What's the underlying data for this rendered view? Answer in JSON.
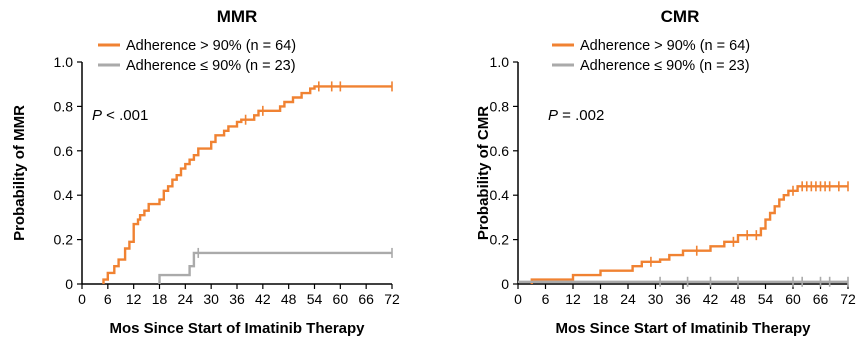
{
  "chart_data": [
    {
      "type": "line",
      "subtype": "kaplan-meier-cumulative-incidence",
      "title": "MMR",
      "xlabel": "Mos Since Start of Imatinib Therapy",
      "ylabel": "Probability of MMR",
      "xlim": [
        0,
        72
      ],
      "ylim": [
        0,
        1.0
      ],
      "xticks": [
        "0",
        "6",
        "12",
        "18",
        "24",
        "30",
        "36",
        "42",
        "48",
        "54",
        "60",
        "66",
        "72"
      ],
      "yticks": [
        "0",
        "0.2",
        "0.4",
        "0.6",
        "0.8",
        "1.0"
      ],
      "grid": false,
      "legend_position": "top-left",
      "p_value": {
        "prefix": "P",
        "text": " < .001"
      },
      "series": [
        {
          "name": "Adherence > 90% (n = 64)",
          "color": "#f08232",
          "points": [
            [
              5,
              0
            ],
            [
              5,
              0.02
            ],
            [
              6,
              0.02
            ],
            [
              6,
              0.05
            ],
            [
              7.5,
              0.05
            ],
            [
              7.5,
              0.08
            ],
            [
              8.5,
              0.08
            ],
            [
              8.5,
              0.11
            ],
            [
              10,
              0.11
            ],
            [
              10,
              0.16
            ],
            [
              11,
              0.16
            ],
            [
              11,
              0.19
            ],
            [
              12,
              0.19
            ],
            [
              12,
              0.27
            ],
            [
              13,
              0.27
            ],
            [
              13,
              0.29
            ],
            [
              13.5,
              0.29
            ],
            [
              13.5,
              0.31
            ],
            [
              14.5,
              0.31
            ],
            [
              14.5,
              0.33
            ],
            [
              15.5,
              0.33
            ],
            [
              15.5,
              0.36
            ],
            [
              18,
              0.36
            ],
            [
              18,
              0.38
            ],
            [
              19,
              0.38
            ],
            [
              19,
              0.42
            ],
            [
              20,
              0.42
            ],
            [
              20,
              0.44
            ],
            [
              21,
              0.44
            ],
            [
              21,
              0.47
            ],
            [
              22,
              0.47
            ],
            [
              22,
              0.49
            ],
            [
              23,
              0.49
            ],
            [
              23,
              0.52
            ],
            [
              24,
              0.52
            ],
            [
              24,
              0.54
            ],
            [
              25,
              0.54
            ],
            [
              25,
              0.56
            ],
            [
              26,
              0.56
            ],
            [
              26,
              0.58
            ],
            [
              27,
              0.58
            ],
            [
              27,
              0.61
            ],
            [
              30,
              0.61
            ],
            [
              30,
              0.64
            ],
            [
              31,
              0.64
            ],
            [
              31,
              0.67
            ],
            [
              33,
              0.67
            ],
            [
              33,
              0.69
            ],
            [
              34,
              0.69
            ],
            [
              34,
              0.71
            ],
            [
              36,
              0.71
            ],
            [
              36,
              0.73
            ],
            [
              37,
              0.73
            ],
            [
              37,
              0.74
            ],
            [
              40,
              0.74
            ],
            [
              40,
              0.76
            ],
            [
              41,
              0.76
            ],
            [
              41,
              0.78
            ],
            [
              46,
              0.78
            ],
            [
              46,
              0.8
            ],
            [
              47,
              0.8
            ],
            [
              47,
              0.82
            ],
            [
              49,
              0.82
            ],
            [
              49,
              0.84
            ],
            [
              51,
              0.84
            ],
            [
              51,
              0.86
            ],
            [
              53,
              0.86
            ],
            [
              53,
              0.88
            ],
            [
              54,
              0.88
            ],
            [
              54,
              0.89
            ],
            [
              72,
              0.89
            ]
          ],
          "censor": [
            [
              38,
              0.74
            ],
            [
              42,
              0.78
            ],
            [
              55,
              0.89
            ],
            [
              58,
              0.89
            ],
            [
              60,
              0.89
            ],
            [
              72,
              0.89
            ]
          ]
        },
        {
          "name": "Adherence ≤ 90% (n = 23)",
          "color": "#aaaaaa",
          "points": [
            [
              18,
              0
            ],
            [
              18,
              0.04
            ],
            [
              25,
              0.04
            ],
            [
              25,
              0.08
            ],
            [
              26,
              0.08
            ],
            [
              26,
              0.14
            ],
            [
              72,
              0.14
            ]
          ],
          "censor": [
            [
              27,
              0.14
            ],
            [
              72,
              0.14
            ]
          ]
        }
      ]
    },
    {
      "type": "line",
      "subtype": "kaplan-meier-cumulative-incidence",
      "title": "CMR",
      "xlabel": "Mos Since Start of Imatinib Therapy",
      "ylabel": "Probability of CMR",
      "xlim": [
        0,
        72
      ],
      "ylim": [
        0,
        1.0
      ],
      "xticks": [
        "0",
        "6",
        "12",
        "18",
        "24",
        "30",
        "36",
        "42",
        "48",
        "54",
        "60",
        "66",
        "72"
      ],
      "yticks": [
        "0",
        "0.2",
        "0.4",
        "0.6",
        "0.8",
        "1.0"
      ],
      "grid": false,
      "legend_position": "top-left",
      "p_value": {
        "prefix": "P",
        "text": " = .002"
      },
      "series": [
        {
          "name": "Adherence > 90% (n = 64)",
          "color": "#f08232",
          "points": [
            [
              3,
              0
            ],
            [
              3,
              0.02
            ],
            [
              12,
              0.02
            ],
            [
              12,
              0.04
            ],
            [
              18,
              0.04
            ],
            [
              18,
              0.06
            ],
            [
              25,
              0.06
            ],
            [
              25,
              0.08
            ],
            [
              27,
              0.08
            ],
            [
              27,
              0.1
            ],
            [
              31,
              0.1
            ],
            [
              31,
              0.11
            ],
            [
              33,
              0.11
            ],
            [
              33,
              0.13
            ],
            [
              36,
              0.13
            ],
            [
              36,
              0.15
            ],
            [
              42,
              0.15
            ],
            [
              42,
              0.17
            ],
            [
              45,
              0.17
            ],
            [
              45,
              0.19
            ],
            [
              48,
              0.19
            ],
            [
              48,
              0.22
            ],
            [
              53,
              0.22
            ],
            [
              53,
              0.25
            ],
            [
              54,
              0.25
            ],
            [
              54,
              0.29
            ],
            [
              55,
              0.29
            ],
            [
              55,
              0.32
            ],
            [
              56,
              0.32
            ],
            [
              56,
              0.35
            ],
            [
              57,
              0.35
            ],
            [
              57,
              0.38
            ],
            [
              58,
              0.38
            ],
            [
              58,
              0.4
            ],
            [
              59,
              0.4
            ],
            [
              59,
              0.42
            ],
            [
              61,
              0.42
            ],
            [
              61,
              0.44
            ],
            [
              72,
              0.44
            ]
          ],
          "censor": [
            [
              29,
              0.1
            ],
            [
              39,
              0.15
            ],
            [
              47,
              0.19
            ],
            [
              50,
              0.22
            ],
            [
              52,
              0.22
            ],
            [
              60,
              0.42
            ],
            [
              62,
              0.44
            ],
            [
              63,
              0.44
            ],
            [
              64,
              0.44
            ],
            [
              65,
              0.44
            ],
            [
              66,
              0.44
            ],
            [
              67,
              0.44
            ],
            [
              68,
              0.44
            ],
            [
              70,
              0.44
            ],
            [
              72,
              0.44
            ]
          ]
        },
        {
          "name": "Adherence ≤ 90% (n = 23)",
          "color": "#aaaaaa",
          "points": [
            [
              0,
              0.01
            ],
            [
              72,
              0.01
            ]
          ],
          "censor": [
            [
              31,
              0.01
            ],
            [
              37,
              0.01
            ],
            [
              42,
              0.01
            ],
            [
              48,
              0.01
            ],
            [
              60,
              0.01
            ],
            [
              62,
              0.01
            ],
            [
              66,
              0.01
            ],
            [
              68,
              0.01
            ],
            [
              72,
              0.01
            ]
          ]
        }
      ]
    }
  ]
}
